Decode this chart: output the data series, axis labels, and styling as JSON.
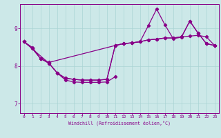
{
  "xlabel": "Windchill (Refroidissement éolien,°C)",
  "bg_color": "#cce8e8",
  "line_color": "#880088",
  "grid_color": "#aad4d4",
  "xlim": [
    -0.5,
    23.5
  ],
  "ylim": [
    6.75,
    9.65
  ],
  "yticks": [
    7,
    8,
    9
  ],
  "xticks": [
    0,
    1,
    2,
    3,
    4,
    5,
    6,
    7,
    8,
    9,
    10,
    11,
    12,
    13,
    14,
    15,
    16,
    17,
    18,
    19,
    20,
    21,
    22,
    23
  ],
  "line1_x": [
    0,
    1,
    2,
    3,
    11,
    12,
    13,
    14,
    15,
    16,
    17,
    18,
    19,
    20,
    21,
    22,
    23
  ],
  "line1_y": [
    8.65,
    8.5,
    8.2,
    8.1,
    8.55,
    8.6,
    8.62,
    8.65,
    8.7,
    8.72,
    8.75,
    8.75,
    8.78,
    8.8,
    8.82,
    8.78,
    8.55
  ],
  "line2_x": [
    0,
    1,
    2,
    3,
    4,
    5,
    6,
    7,
    8,
    9,
    10,
    11,
    12,
    13,
    14,
    15,
    16,
    17,
    18,
    19,
    20,
    21,
    22,
    23
  ],
  "line2_y": [
    8.65,
    8.47,
    8.2,
    8.08,
    7.82,
    7.68,
    7.65,
    7.63,
    7.63,
    7.63,
    7.65,
    8.55,
    8.6,
    8.62,
    8.65,
    9.08,
    9.52,
    9.1,
    8.73,
    8.77,
    9.2,
    8.88,
    8.6,
    8.55
  ],
  "line3_x": [
    0,
    1,
    2,
    3,
    4,
    5,
    6,
    7,
    8,
    9,
    10,
    11,
    12,
    13,
    14,
    15,
    16,
    17,
    18,
    19,
    20,
    21,
    22,
    23
  ],
  "line3_y": [
    8.65,
    8.47,
    8.2,
    8.08,
    7.82,
    7.68,
    7.65,
    7.63,
    7.63,
    7.63,
    7.65,
    8.55,
    8.6,
    8.62,
    8.65,
    8.7,
    8.72,
    8.75,
    8.75,
    8.78,
    9.2,
    8.88,
    8.6,
    8.55
  ],
  "line4_x": [
    0,
    3,
    4,
    5,
    6,
    7,
    8,
    9,
    10,
    11
  ],
  "line4_y": [
    8.65,
    8.08,
    7.82,
    7.63,
    7.58,
    7.57,
    7.57,
    7.57,
    7.58,
    7.72
  ]
}
